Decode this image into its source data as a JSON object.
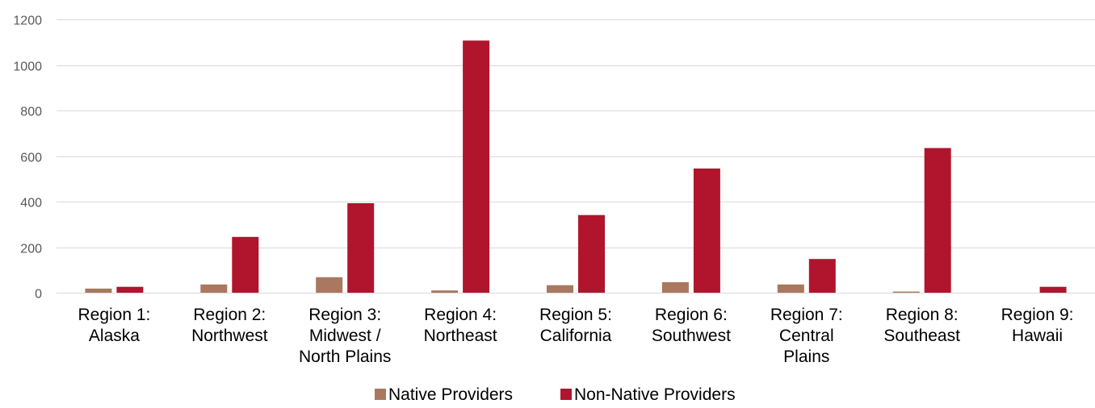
{
  "chart_data": {
    "type": "bar",
    "categories": [
      [
        "Region 1:",
        "Alaska"
      ],
      [
        "Region 2:",
        "Northwest"
      ],
      [
        "Region 3:",
        "Midwest /",
        "North Plains"
      ],
      [
        "Region 4:",
        "Northeast"
      ],
      [
        "Region 5:",
        "California"
      ],
      [
        "Region 6:",
        "Southwest"
      ],
      [
        "Region 7:",
        "Central",
        "Plains"
      ],
      [
        "Region 8:",
        "Southeast"
      ],
      [
        "Region 9:",
        "Hawaii"
      ]
    ],
    "series": [
      {
        "name": "Native Providers",
        "color": "#a9785e",
        "values": [
          18,
          36,
          68,
          10,
          33,
          46,
          36,
          5,
          0
        ]
      },
      {
        "name": "Non-Native Providers",
        "color": "#b0152d",
        "values": [
          26,
          245,
          393,
          1107,
          341,
          545,
          148,
          635,
          26
        ]
      }
    ],
    "ylim": [
      0,
      1200
    ],
    "yticks": [
      0,
      200,
      400,
      600,
      800,
      1000,
      1200
    ],
    "grid": true,
    "legend_position": "bottom"
  }
}
